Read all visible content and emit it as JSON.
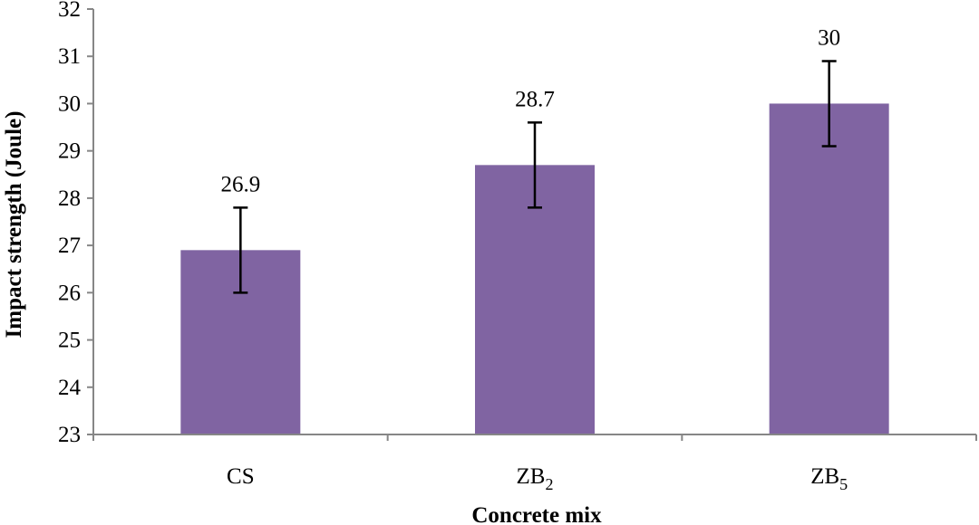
{
  "chart_data": {
    "type": "bar",
    "title": "",
    "xlabel": "Concrete mix",
    "ylabel": "Impact  strength  (Joule)",
    "categories": [
      {
        "base": "CS",
        "sub": ""
      },
      {
        "base": "ZB",
        "sub": "2"
      },
      {
        "base": "ZB",
        "sub": "5"
      }
    ],
    "values": [
      26.9,
      28.7,
      30
    ],
    "value_labels": [
      "26.9",
      "28.7",
      "30"
    ],
    "error_bars": [
      {
        "low": 26.0,
        "high": 27.8
      },
      {
        "low": 27.8,
        "high": 29.6
      },
      {
        "low": 29.1,
        "high": 30.9
      }
    ],
    "ylim": [
      23,
      32
    ],
    "yticks": [
      23,
      24,
      25,
      26,
      27,
      28,
      29,
      30,
      31,
      32
    ],
    "grid": false,
    "legend": "none",
    "colors": {
      "bar": "#8064A2",
      "axis": "#868686",
      "error_bar": "#000000"
    }
  }
}
